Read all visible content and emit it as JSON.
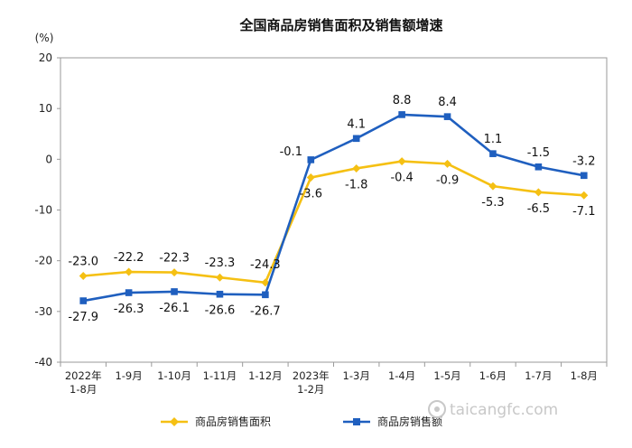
{
  "chart_data": {
    "type": "line",
    "title": "全国商品房销售面积及销售额增速",
    "unit": "(%)",
    "categories": [
      [
        "2022年",
        "1-8月"
      ],
      [
        "1-9月"
      ],
      [
        "1-10月"
      ],
      [
        "1-11月"
      ],
      [
        "1-12月"
      ],
      [
        "2023年",
        "1-2月"
      ],
      [
        "1-3月"
      ],
      [
        "1-4月"
      ],
      [
        "1-5月"
      ],
      [
        "1-6月"
      ],
      [
        "1-7月"
      ],
      [
        "1-8月"
      ]
    ],
    "series": [
      {
        "name": "商品房销售面积",
        "color": "#f5c013",
        "marker": "diamond",
        "values": [
          -23.0,
          -22.2,
          -22.3,
          -23.3,
          -24.3,
          -3.6,
          -1.8,
          -0.4,
          -0.9,
          -5.3,
          -6.5,
          -7.1
        ],
        "labels": [
          "-23.0",
          "-22.2",
          "-22.3",
          "-23.3",
          "-24.3",
          "-3.6",
          "-1.8",
          "-0.4",
          "-0.9",
          "-5.3",
          "-6.5",
          "-7.1"
        ]
      },
      {
        "name": "商品房销售额",
        "color": "#1f5fbf",
        "marker": "square",
        "values": [
          -27.9,
          -26.3,
          -26.1,
          -26.6,
          -26.7,
          -0.1,
          4.1,
          8.8,
          8.4,
          1.1,
          -1.5,
          -3.2
        ],
        "labels": [
          "-27.9",
          "-26.3",
          "-26.1",
          "-26.6",
          "-26.7",
          "-0.1",
          "4.1",
          "8.8",
          "8.4",
          "1.1",
          "-1.5",
          "-3.2"
        ]
      }
    ],
    "yticks": [
      20,
      10,
      0,
      -10,
      -20,
      -30,
      -40
    ],
    "ylim": [
      -40,
      20
    ],
    "grid": false,
    "legend_position": "bottom"
  },
  "watermark": "taicangfc.com"
}
